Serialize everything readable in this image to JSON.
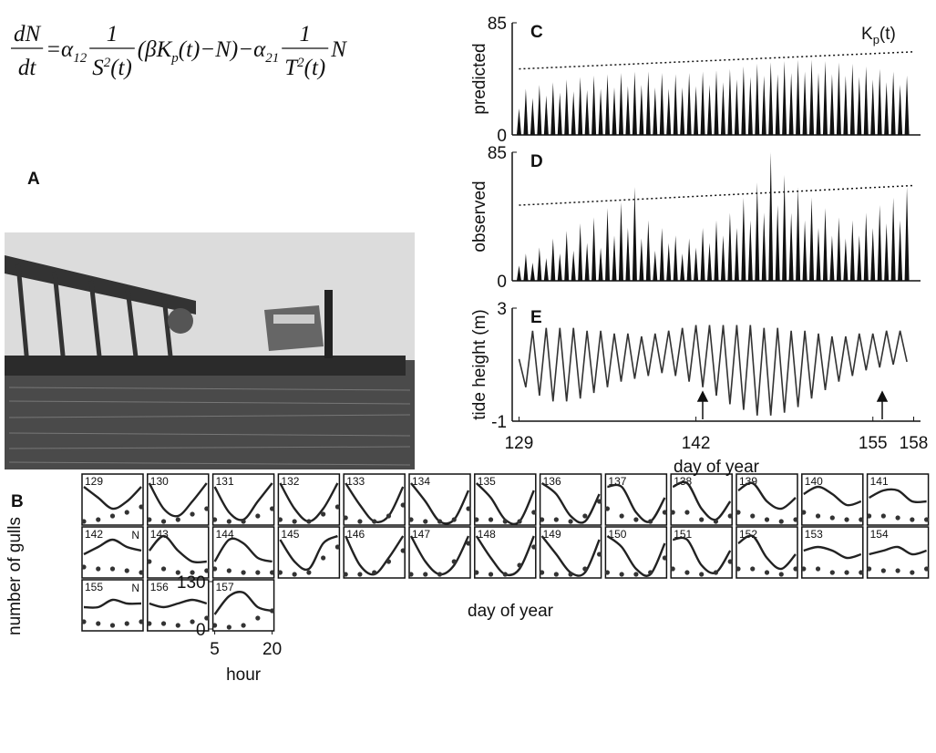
{
  "equation": {
    "lhs_num": "dN",
    "lhs_den": "dt",
    "t1": "=α",
    "s1": "12",
    "f1_num": "1",
    "f1_den": "S",
    "f1_den_sup": "2",
    "f1_den_rest": "(t)",
    "t2": "(βK",
    "s2": "p",
    "t3": "(t)−N)−α",
    "s3": "21",
    "f2_num": "1",
    "f2_den": "T",
    "f2_den_sup": "2",
    "f2_den_rest": "(t)",
    "t4": "N"
  },
  "panel_a": {
    "label": "A"
  },
  "chart_data": [
    {
      "type": "bar",
      "panel": "C",
      "ylabel": "predicted",
      "color": "#111",
      "xlim": [
        128.5,
        158.5
      ],
      "ylim": [
        0,
        85
      ],
      "yticks": [
        0,
        85
      ],
      "x": [
        129,
        129.5,
        130,
        130.5,
        131,
        131.5,
        132,
        132.5,
        133,
        133.5,
        134,
        134.5,
        135,
        135.5,
        136,
        136.5,
        137,
        137.5,
        138,
        138.5,
        139,
        139.5,
        140,
        140.5,
        141,
        141.5,
        142,
        142.5,
        143,
        143.5,
        144,
        144.5,
        145,
        145.5,
        146,
        146.5,
        147,
        147.5,
        148,
        148.5,
        149,
        149.5,
        150,
        150.5,
        151,
        151.5,
        152,
        152.5,
        153,
        153.5,
        154,
        154.5,
        155,
        155.5,
        156,
        156.5,
        157,
        157.5
      ],
      "values": [
        20,
        35,
        28,
        38,
        30,
        40,
        32,
        42,
        33,
        44,
        34,
        45,
        35,
        46,
        36,
        47,
        37,
        48,
        38,
        48,
        36,
        47,
        35,
        46,
        36,
        47,
        37,
        48,
        38,
        49,
        40,
        50,
        42,
        52,
        44,
        54,
        45,
        55,
        46,
        56,
        47,
        57,
        48,
        57,
        47,
        56,
        46,
        55,
        45,
        54,
        44,
        52,
        42,
        50,
        40,
        48,
        38,
        45
      ],
      "kp": {
        "x": [
          129,
          158
        ],
        "values": [
          50,
          63
        ]
      },
      "kp_label": {
        "base": "K",
        "sub": "p",
        "rest": "(t)"
      }
    },
    {
      "type": "bar",
      "panel": "D",
      "ylabel": "observed",
      "color": "#111",
      "xlim": [
        128.5,
        158.5
      ],
      "ylim": [
        0,
        85
      ],
      "yticks": [
        0,
        85
      ],
      "x": [
        129,
        129.5,
        130,
        130.5,
        131,
        131.5,
        132,
        132.5,
        133,
        133.5,
        134,
        134.5,
        135,
        135.5,
        136,
        136.5,
        137,
        137.5,
        138,
        138.5,
        139,
        139.5,
        140,
        140.5,
        141,
        141.5,
        142,
        142.5,
        143,
        143.5,
        144,
        144.5,
        145,
        145.5,
        146,
        146.5,
        147,
        147.5,
        148,
        148.5,
        149,
        149.5,
        150,
        150.5,
        151,
        151.5,
        152,
        152.5,
        153,
        153.5,
        154,
        154.5,
        155,
        155.5,
        156,
        156.5,
        157,
        157.5
      ],
      "values": [
        10,
        18,
        12,
        22,
        15,
        28,
        18,
        33,
        20,
        38,
        25,
        42,
        22,
        48,
        30,
        52,
        35,
        62,
        28,
        40,
        20,
        35,
        25,
        30,
        18,
        28,
        22,
        35,
        25,
        40,
        30,
        45,
        35,
        55,
        40,
        65,
        45,
        85,
        50,
        70,
        45,
        62,
        40,
        55,
        35,
        48,
        30,
        42,
        28,
        40,
        30,
        45,
        35,
        50,
        38,
        55,
        40,
        62
      ],
      "kp": {
        "x": [
          129,
          158
        ],
        "values": [
          50,
          63
        ]
      }
    },
    {
      "type": "line",
      "panel": "E",
      "ylabel": "tide height (m)",
      "xlabel": "day of year",
      "color": "#333",
      "xlim": [
        128.5,
        158.5
      ],
      "ylim": [
        -1,
        3
      ],
      "yticks": [
        -1,
        3
      ],
      "xticks": [
        129,
        142,
        155,
        158
      ],
      "x": [
        129,
        129.5,
        130,
        130.5,
        131,
        131.5,
        132,
        132.5,
        133,
        133.5,
        134,
        134.5,
        135,
        135.5,
        136,
        136.5,
        137,
        137.5,
        138,
        138.5,
        139,
        139.5,
        140,
        140.5,
        141,
        141.5,
        142,
        142.5,
        143,
        143.5,
        144,
        144.5,
        145,
        145.5,
        146,
        146.5,
        147,
        147.5,
        148,
        148.5,
        149,
        149.5,
        150,
        150.5,
        151,
        151.5,
        152,
        152.5,
        153,
        153.5,
        154,
        154.5,
        155,
        155.5,
        156,
        156.5,
        157,
        157.5
      ],
      "values": [
        1.2,
        0.2,
        2.2,
        -0.1,
        2.3,
        -0.3,
        2.3,
        -0.3,
        2.3,
        -0.2,
        2.2,
        0,
        2.2,
        0.2,
        2.1,
        0.4,
        2.1,
        0.5,
        2.0,
        0.6,
        2.1,
        0.7,
        2.2,
        0.6,
        2.3,
        0.4,
        2.4,
        0.2,
        2.4,
        -0.1,
        2.4,
        -0.4,
        2.4,
        -0.6,
        2.4,
        -0.8,
        2.3,
        -0.8,
        2.3,
        -0.7,
        2.2,
        -0.5,
        2.2,
        -0.2,
        2.1,
        0.1,
        2.0,
        0.4,
        2.0,
        0.6,
        2.1,
        0.8,
        2.1,
        0.9,
        2.2,
        1.0,
        2.2,
        1.1
      ]
    },
    {
      "type": "small_multiples",
      "panel": "B",
      "ylabel": "number of gulls",
      "xlabel": "hour",
      "center_label": "day of year",
      "hours": [
        5,
        8.75,
        12.5,
        16.25,
        20
      ],
      "xlim": [
        5,
        20
      ],
      "xticks": [
        5,
        20
      ],
      "ylim": [
        0,
        130
      ],
      "yticks": [
        0,
        130
      ],
      "panels": [
        {
          "label": "129",
          "curve": [
            100,
            70,
            40,
            60,
            100
          ],
          "dots": [
            5,
            10,
            20,
            30,
            45
          ]
        },
        {
          "label": "130",
          "curve": [
            110,
            40,
            20,
            60,
            110
          ],
          "dots": [
            10,
            5,
            10,
            25,
            40
          ]
        },
        {
          "label": "131",
          "curve": [
            100,
            30,
            10,
            60,
            110
          ],
          "dots": [
            10,
            5,
            5,
            20,
            40
          ]
        },
        {
          "label": "132",
          "curve": [
            110,
            40,
            5,
            40,
            110
          ],
          "dots": [
            10,
            5,
            5,
            25,
            45
          ]
        },
        {
          "label": "133",
          "curve": [
            110,
            50,
            5,
            20,
            100
          ],
          "dots": [
            15,
            5,
            5,
            20,
            50
          ]
        },
        {
          "label": "134",
          "curve": [
            110,
            60,
            5,
            10,
            90
          ],
          "dots": [
            10,
            5,
            5,
            10,
            40
          ]
        },
        {
          "label": "135",
          "curve": [
            110,
            70,
            10,
            5,
            90
          ],
          "dots": [
            10,
            10,
            5,
            5,
            30
          ]
        },
        {
          "label": "136",
          "curve": [
            110,
            80,
            20,
            5,
            80
          ],
          "dots": [
            10,
            10,
            5,
            20,
            60
          ]
        },
        {
          "label": "137",
          "curve": [
            100,
            100,
            30,
            5,
            70
          ],
          "dots": [
            40,
            20,
            10,
            5,
            30
          ]
        },
        {
          "label": "138",
          "curve": [
            100,
            110,
            40,
            10,
            60
          ],
          "dots": [
            30,
            30,
            10,
            5,
            20
          ]
        },
        {
          "label": "139",
          "curve": [
            90,
            110,
            60,
            40,
            70
          ],
          "dots": [
            30,
            20,
            10,
            5,
            10
          ]
        },
        {
          "label": "140",
          "curve": [
            80,
            100,
            80,
            50,
            60
          ],
          "dots": [
            30,
            20,
            15,
            10,
            10
          ]
        },
        {
          "label": "141",
          "curve": [
            70,
            90,
            90,
            60,
            60
          ],
          "dots": [
            20,
            20,
            15,
            10,
            10
          ]
        },
        {
          "label": "142",
          "flag": "N",
          "curve": [
            60,
            80,
            100,
            80,
            70
          ],
          "dots": [
            25,
            20,
            20,
            15,
            10
          ]
        },
        {
          "label": "143",
          "curve": [
            70,
            110,
            70,
            40,
            40
          ],
          "dots": [
            40,
            20,
            10,
            10,
            15
          ]
        },
        {
          "label": "144",
          "curve": [
            40,
            100,
            90,
            50,
            40
          ],
          "dots": [
            20,
            15,
            10,
            10,
            10
          ]
        },
        {
          "label": "145",
          "curve": [
            100,
            40,
            20,
            90,
            110
          ],
          "dots": [
            10,
            5,
            10,
            50,
            80
          ]
        },
        {
          "label": "146",
          "curve": [
            110,
            30,
            5,
            50,
            110
          ],
          "dots": [
            5,
            5,
            10,
            40,
            70
          ]
        },
        {
          "label": "147",
          "curve": [
            110,
            40,
            5,
            30,
            110
          ],
          "dots": [
            5,
            5,
            5,
            40,
            90
          ]
        },
        {
          "label": "148",
          "curve": [
            110,
            50,
            5,
            20,
            110
          ],
          "dots": [
            10,
            5,
            5,
            30,
            80
          ]
        },
        {
          "label": "149",
          "curve": [
            110,
            60,
            10,
            10,
            100
          ],
          "dots": [
            10,
            5,
            5,
            20,
            60
          ]
        },
        {
          "label": "150",
          "curve": [
            110,
            80,
            20,
            5,
            90
          ],
          "dots": [
            10,
            5,
            5,
            10,
            50
          ]
        },
        {
          "label": "151",
          "curve": [
            100,
            100,
            30,
            10,
            70
          ],
          "dots": [
            20,
            10,
            5,
            10,
            40
          ]
        },
        {
          "label": "152",
          "curve": [
            90,
            110,
            50,
            20,
            60
          ],
          "dots": [
            20,
            20,
            10,
            5,
            20
          ]
        },
        {
          "label": "153",
          "curve": [
            70,
            80,
            70,
            50,
            60
          ],
          "dots": [
            20,
            20,
            10,
            10,
            10
          ]
        },
        {
          "label": "154",
          "curve": [
            60,
            70,
            80,
            60,
            70
          ],
          "dots": [
            20,
            15,
            15,
            10,
            20
          ]
        },
        {
          "label": "155",
          "flag": "N",
          "curve": [
            60,
            60,
            80,
            70,
            70
          ],
          "dots": [
            20,
            15,
            10,
            15,
            20
          ]
        },
        {
          "label": "156",
          "curve": [
            70,
            60,
            70,
            80,
            70
          ],
          "dots": [
            15,
            15,
            10,
            20,
            30
          ]
        },
        {
          "label": "157",
          "curve": [
            40,
            90,
            100,
            60,
            50
          ],
          "dots": [
            10,
            5,
            10,
            30,
            50
          ]
        }
      ]
    }
  ]
}
